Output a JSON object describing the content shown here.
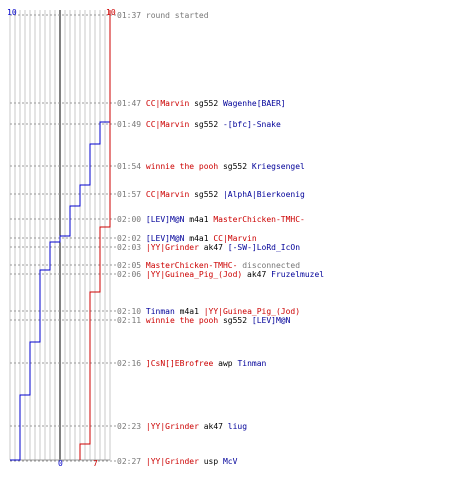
{
  "colors": {
    "team_a": "#cc0000",
    "team_b": "#0000cc",
    "grid": "#c8c8c8",
    "timeline": "#000000",
    "time_text": "#777777"
  },
  "chart_data": {
    "type": "line",
    "top_label_blue": "10",
    "top_label_red": "10",
    "bottom_label_blue": "0",
    "bottom_label_red": "7",
    "ylim": [
      0,
      10
    ],
    "series": [
      {
        "color": "#0000cc",
        "steps": [
          10,
          10,
          9,
          8,
          7,
          6,
          6,
          5,
          4,
          4,
          3,
          3,
          3,
          2,
          1,
          1,
          0
        ]
      },
      {
        "color": "#cc0000",
        "steps": [
          10,
          10,
          10,
          10,
          10,
          10,
          9,
          9,
          9,
          9,
          9,
          8,
          8,
          8,
          8,
          7,
          7
        ]
      }
    ]
  },
  "events": [
    {
      "time": "01:37",
      "parts": [
        {
          "text": "round started",
          "style": "t"
        }
      ]
    },
    {
      "time": "01:47",
      "parts": [
        {
          "text": "CC|Marvin",
          "style": "red"
        },
        {
          "text": " sg552 ",
          "style": "blk"
        },
        {
          "text": "Wagenhe[BAER]",
          "style": "blu"
        }
      ]
    },
    {
      "time": "01:49",
      "parts": [
        {
          "text": "CC|Marvin",
          "style": "red"
        },
        {
          "text": " sg552 ",
          "style": "blk"
        },
        {
          "text": "-[bfc]-Snake",
          "style": "blu"
        }
      ]
    },
    {
      "time": "01:54",
      "parts": [
        {
          "text": "winnie the pooh",
          "style": "red"
        },
        {
          "text": " sg552 ",
          "style": "blk"
        },
        {
          "text": "Kriegsengel",
          "style": "blu"
        }
      ]
    },
    {
      "time": "01:57",
      "parts": [
        {
          "text": "CC|Marvin",
          "style": "red"
        },
        {
          "text": " sg552 ",
          "style": "blk"
        },
        {
          "text": "|AlphA|Bierkoenig",
          "style": "blu"
        }
      ]
    },
    {
      "time": "02:00",
      "parts": [
        {
          "text": "[LEV]M@N",
          "style": "blu"
        },
        {
          "text": " m4a1 ",
          "style": "blk"
        },
        {
          "text": "MasterChicken-TMHC-",
          "style": "red"
        }
      ]
    },
    {
      "time": "02:02",
      "parts": [
        {
          "text": "[LEV]M@N",
          "style": "blu"
        },
        {
          "text": " m4a1 ",
          "style": "blk"
        },
        {
          "text": "CC|Marvin",
          "style": "red"
        }
      ]
    },
    {
      "time": "02:03",
      "parts": [
        {
          "text": "|YY|Grinder",
          "style": "red"
        },
        {
          "text": " ak47 ",
          "style": "blk"
        },
        {
          "text": "[-SW-]LoRd_IcOn",
          "style": "blu"
        }
      ]
    },
    {
      "time": "02:05",
      "parts": [
        {
          "text": "MasterChicken-TMHC-",
          "style": "red"
        },
        {
          "text": " disconnected",
          "style": "dis"
        }
      ]
    },
    {
      "time": "02:06",
      "parts": [
        {
          "text": "|YY|Guinea_Pig_(Jod)",
          "style": "red"
        },
        {
          "text": " ak47 ",
          "style": "blk"
        },
        {
          "text": "Fruzelmuzel",
          "style": "blu"
        }
      ]
    },
    {
      "time": "02:10",
      "parts": [
        {
          "text": "Tinman",
          "style": "blu"
        },
        {
          "text": " m4a1 ",
          "style": "blk"
        },
        {
          "text": "|YY|Guinea_Pig_(Jod)",
          "style": "red"
        }
      ]
    },
    {
      "time": "02:11",
      "parts": [
        {
          "text": "winnie the pooh",
          "style": "red"
        },
        {
          "text": " sg552 ",
          "style": "blk"
        },
        {
          "text": "[LEV]M@N",
          "style": "blu"
        }
      ]
    },
    {
      "time": "02:16",
      "parts": [
        {
          "text": "]CsN[]EBrofree",
          "style": "red"
        },
        {
          "text": " awp ",
          "style": "blk"
        },
        {
          "text": "Tinman",
          "style": "blu"
        }
      ]
    },
    {
      "time": "02:23",
      "parts": [
        {
          "text": "|YY|Grinder",
          "style": "red"
        },
        {
          "text": " ak47 ",
          "style": "blk"
        },
        {
          "text": "liug",
          "style": "blu"
        }
      ]
    },
    {
      "time": "02:27",
      "parts": [
        {
          "text": "|YY|Grinder",
          "style": "red"
        },
        {
          "text": " usp ",
          "style": "blk"
        },
        {
          "text": "McV",
          "style": "blu"
        }
      ]
    }
  ]
}
